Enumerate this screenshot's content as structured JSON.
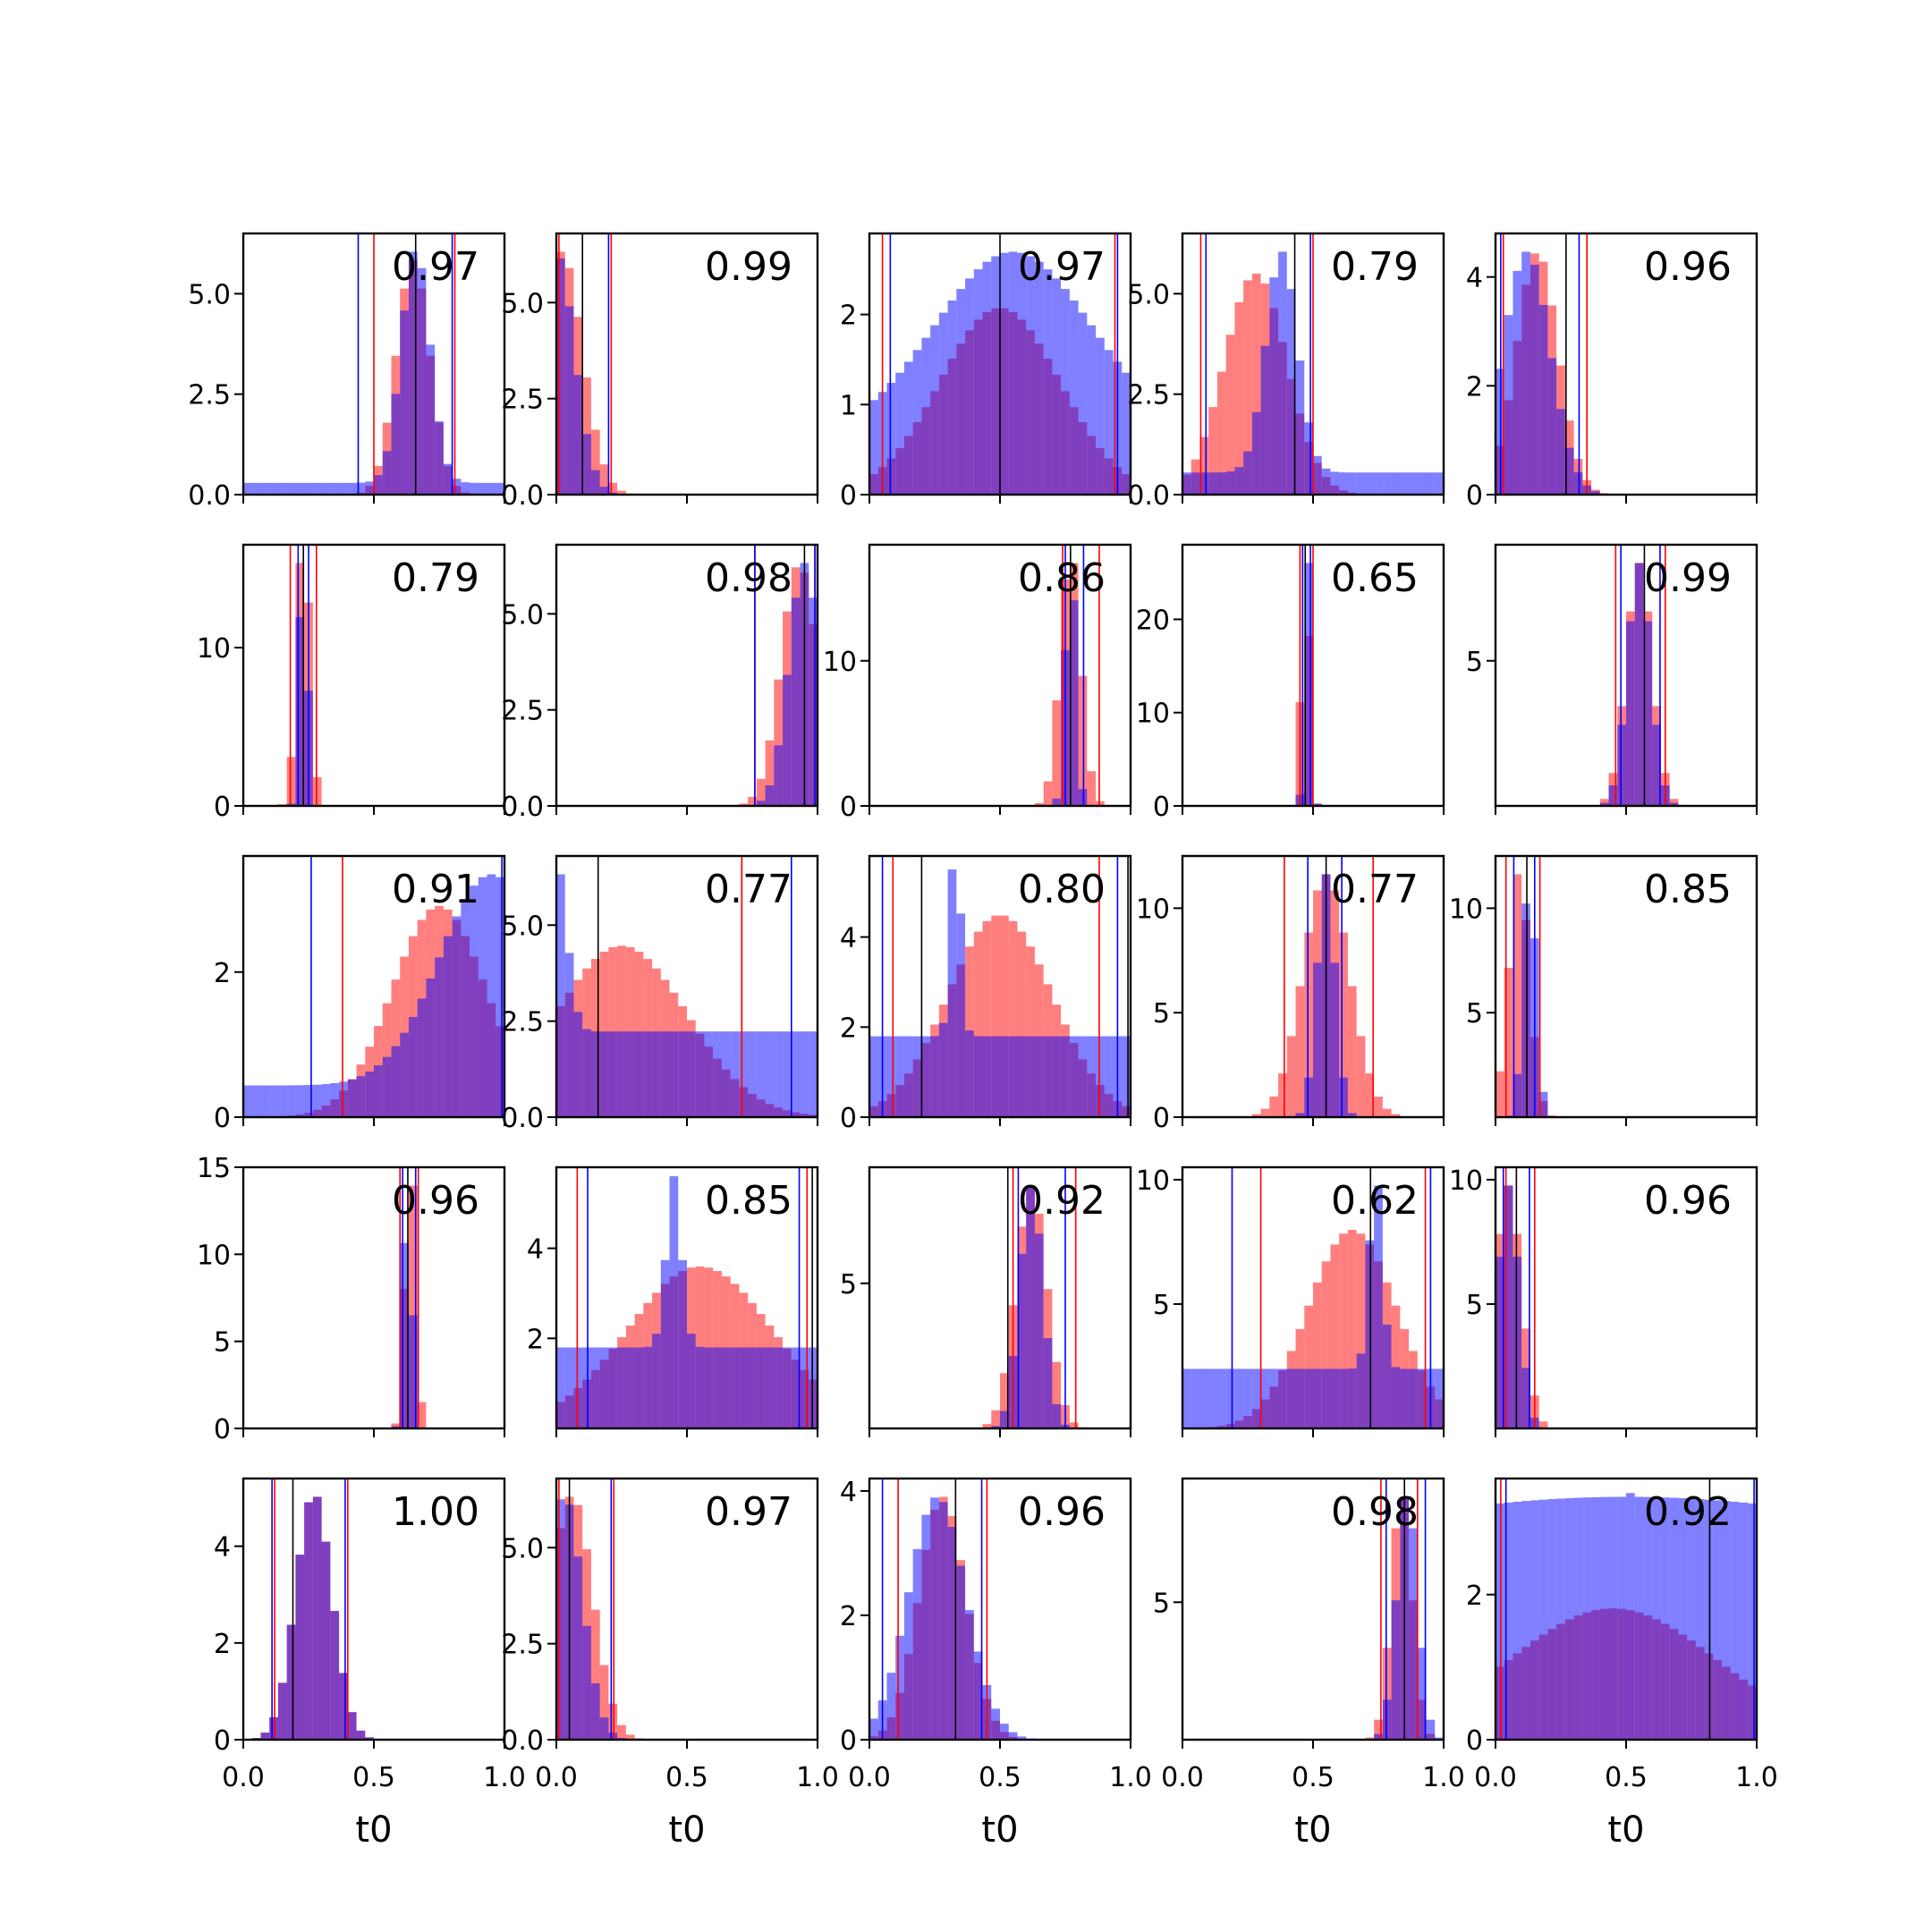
{
  "chart_data": {
    "type": "histogram-grid",
    "x_label": "t0",
    "xlim": [
      0,
      1
    ],
    "x_ticks": [
      "0.0",
      "0.5",
      "1.0"
    ],
    "colors": {
      "red": "#ff0000",
      "blue": "#0000ff",
      "black": "#000000",
      "overlap": "#7b3fbf"
    },
    "panels": [
      {
        "value": "0.97",
        "ymax": 6.5,
        "yticks": [
          "0.0",
          "2.5",
          "5.0"
        ],
        "redMu": 0.65,
        "redSd": 0.065,
        "blueMu": 0.66,
        "blueSd": 0.055,
        "blueSpike": null,
        "blueFloor": 0.05,
        "red_lines": [
          0.5,
          0.81
        ],
        "blue_lines": [
          0.44,
          0.8
        ],
        "black_lines": [
          0.66
        ]
      },
      {
        "value": "0.99",
        "ymax": 6.8,
        "yticks": [
          "0.0",
          "2.5",
          "5.0"
        ],
        "redMu": 0.02,
        "redSd": 0.08,
        "blueMu": 0.0,
        "blueSd": 0.07,
        "blueSpike": null,
        "blueFloor": 0,
        "red_lines": [
          0.01,
          0.21
        ],
        "blue_lines": [
          0.0,
          0.2
        ],
        "black_lines": [
          0.1
        ]
      },
      {
        "value": "0.97",
        "ymax": 2.9,
        "yticks": [
          "0",
          "1",
          "2"
        ],
        "redMu": 0.5,
        "redSd": 0.23,
        "blueMu": 0.55,
        "blueSd": 0.3,
        "blueSpike": null,
        "blueFloor": 0.3,
        "red_lines": [
          0.05,
          0.94
        ],
        "blue_lines": [
          0.08,
          0.95
        ],
        "black_lines": [
          0.5
        ]
      },
      {
        "value": "0.79",
        "ymax": 6.5,
        "yticks": [
          "0.0",
          "2.5",
          "5.0"
        ],
        "redMu": 0.28,
        "redSd": 0.12,
        "blueMu": 0.38,
        "blueSd": 0.06,
        "blueSpike": null,
        "blueFloor": 0.1,
        "red_lines": [
          0.07,
          0.5
        ],
        "blue_lines": [
          0.09,
          0.49
        ],
        "black_lines": [
          0.43
        ]
      },
      {
        "value": "0.96",
        "ymax": 4.8,
        "yticks": [
          "0",
          "2",
          "4"
        ],
        "redMu": 0.16,
        "redSd": 0.08,
        "blueMu": 0.12,
        "blueSd": 0.09,
        "blueSpike": null,
        "blueFloor": 0,
        "red_lines": [
          0.03,
          0.35
        ],
        "blue_lines": [
          0.02,
          0.32
        ],
        "black_lines": [
          0.27
        ]
      },
      {
        "value": "0.79",
        "ymax": 16.5,
        "yticks": [
          "0",
          "10"
        ],
        "redMu": 0.23,
        "redSd": 0.025,
        "blueMu": 0.23,
        "blueSd": 0.015,
        "blueSpike": null,
        "blueFloor": 0,
        "red_lines": [
          0.18,
          0.28
        ],
        "blue_lines": [
          0.21,
          0.25
        ],
        "black_lines": [
          0.23
        ]
      },
      {
        "value": "0.98",
        "ymax": 6.8,
        "yticks": [
          "0.0",
          "2.5",
          "5.0"
        ],
        "redMu": 0.93,
        "redSd": 0.07,
        "blueMu": 0.95,
        "blueSd": 0.06,
        "blueSpike": null,
        "blueFloor": 0,
        "red_lines": [
          0.76,
          0.99
        ],
        "blue_lines": [
          0.76,
          0.99
        ],
        "black_lines": [
          0.95
        ]
      },
      {
        "value": "0.86",
        "ymax": 18.0,
        "yticks": [
          "0",
          "10"
        ],
        "redMu": 0.77,
        "redSd": 0.04,
        "blueMu": 0.77,
        "blueSd": 0.02,
        "blueSpike": null,
        "blueFloor": 0,
        "red_lines": [
          0.74,
          0.88
        ],
        "blue_lines": [
          0.75,
          0.82
        ],
        "black_lines": [
          0.77
        ]
      },
      {
        "value": "0.65",
        "ymax": 28.0,
        "yticks": [
          "0",
          "10",
          "20"
        ],
        "redMu": 0.47,
        "redSd": 0.015,
        "blueMu": 0.48,
        "blueSd": 0.012,
        "blueSpike": null,
        "blueFloor": 0,
        "red_lines": [
          0.45,
          0.5
        ],
        "blue_lines": [
          0.46,
          0.49
        ],
        "black_lines": [
          0.47
        ]
      },
      {
        "value": "0.99",
        "ymax": 9.0,
        "yticks": [
          "5"
        ],
        "redMu": 0.55,
        "redSd": 0.05,
        "blueMu": 0.55,
        "blueSd": 0.045,
        "blueSpike": null,
        "blueFloor": 0,
        "red_lines": [
          0.46,
          0.65
        ],
        "blue_lines": [
          0.48,
          0.63
        ],
        "black_lines": [
          0.57
        ]
      },
      {
        "value": "0.91",
        "ymax": 3.6,
        "yticks": [
          "0",
          "2"
        ],
        "redMu": 0.75,
        "redSd": 0.18,
        "blueMu": 0.95,
        "blueSd": 0.2,
        "blueSpike": null,
        "blueFloor": 0.15,
        "red_lines": [
          0.38,
          1.0
        ],
        "blue_lines": [
          0.26,
          0.99
        ],
        "black_lines": []
      },
      {
        "value": "0.77",
        "ymax": 6.8,
        "yticks": [
          "0.0",
          "2.5",
          "5.0"
        ],
        "redMu": 0.25,
        "redSd": 0.25,
        "blueMu": 0.0,
        "blueSd": 0.04,
        "blueSpike": null,
        "blueFloor": 0.5,
        "red_lines": [
          0.71,
          0.71
        ],
        "blue_lines": [
          0.0,
          0.9
        ],
        "black_lines": [
          0.16
        ]
      },
      {
        "value": "0.80",
        "ymax": 5.8,
        "yticks": [
          "0",
          "2",
          "4"
        ],
        "redMu": 0.5,
        "redSd": 0.2,
        "blueMu": 0.33,
        "blueSd": 0.02,
        "blueSpike": 5.5,
        "blueFloor": 0.4,
        "red_lines": [
          0.09,
          0.88
        ],
        "blue_lines": [
          0.05,
          0.95
        ],
        "black_lines": [
          0.2,
          0.99
        ]
      },
      {
        "value": "0.77",
        "ymax": 12.5,
        "yticks": [
          "0",
          "5",
          "10"
        ],
        "redMu": 0.55,
        "redSd": 0.09,
        "blueMu": 0.55,
        "blueSd": 0.035,
        "blueSpike": null,
        "blueFloor": 0,
        "red_lines": [
          0.39,
          0.73
        ],
        "blue_lines": [
          0.48,
          0.61
        ],
        "black_lines": [
          0.55
        ]
      },
      {
        "value": "0.85",
        "ymax": 12.5,
        "yticks": [
          "5",
          "10"
        ],
        "redMu": 0.09,
        "redSd": 0.04,
        "blueMu": 0.13,
        "blueSd": 0.025,
        "blueSpike": null,
        "blueFloor": 0,
        "red_lines": [
          0.04,
          0.17
        ],
        "blue_lines": [
          0.07,
          0.15
        ],
        "black_lines": [
          0.12
        ]
      },
      {
        "value": "0.96",
        "ymax": 15.0,
        "yticks": [
          "0",
          "5",
          "10",
          "15"
        ],
        "redMu": 0.64,
        "redSd": 0.02,
        "blueMu": 0.63,
        "blueSd": 0.015,
        "blueSpike": null,
        "blueFloor": 0,
        "red_lines": [
          0.6,
          0.67
        ],
        "blue_lines": [
          0.61,
          0.66
        ],
        "black_lines": [
          0.63
        ]
      },
      {
        "value": "0.85",
        "ymax": 5.8,
        "yticks": [
          "2",
          "4"
        ],
        "redMu": 0.55,
        "redSd": 0.28,
        "blueMu": 0.45,
        "blueSd": 0.03,
        "blueSpike": 5.6,
        "blueFloor": 0.5,
        "red_lines": [
          0.08,
          0.96
        ],
        "blue_lines": [
          0.12,
          0.93
        ],
        "black_lines": [
          0.98
        ]
      },
      {
        "value": "0.92",
        "ymax": 9.0,
        "yticks": [
          "5"
        ],
        "redMu": 0.62,
        "redSd": 0.06,
        "blueMu": 0.62,
        "blueSd": 0.045,
        "blueSpike": null,
        "blueFloor": 0,
        "red_lines": [
          0.55,
          0.79
        ],
        "blue_lines": [
          0.57,
          0.75
        ],
        "black_lines": [
          0.53
        ]
      },
      {
        "value": "0.62",
        "ymax": 10.5,
        "yticks": [
          "5",
          "10"
        ],
        "redMu": 0.65,
        "redSd": 0.17,
        "blueMu": 0.74,
        "blueSd": 0.025,
        "blueSpike": null,
        "blueFloor": 0.3,
        "red_lines": [
          0.3,
          0.93
        ],
        "blue_lines": [
          0.19,
          0.95
        ],
        "black_lines": [
          0.72
        ]
      },
      {
        "value": "0.96",
        "ymax": 10.5,
        "yticks": [
          "5",
          "10"
        ],
        "redMu": 0.05,
        "redSd": 0.05,
        "blueMu": 0.05,
        "blueSd": 0.04,
        "blueSpike": null,
        "blueFloor": 0,
        "red_lines": [
          0.04,
          0.15
        ],
        "blue_lines": [
          0.03,
          0.13
        ],
        "black_lines": [
          0.08
        ]
      },
      {
        "value": "1.00",
        "ymax": 5.4,
        "yticks": [
          "0",
          "2",
          "4"
        ],
        "redMu": 0.27,
        "redSd": 0.07,
        "blueMu": 0.27,
        "blueSd": 0.07,
        "blueSpike": null,
        "blueFloor": 0,
        "red_lines": [
          0.12,
          0.4
        ],
        "blue_lines": [
          0.11,
          0.39
        ],
        "black_lines": [
          0.19
        ]
      },
      {
        "value": "0.97",
        "ymax": 6.8,
        "yticks": [
          "0.0",
          "2.5",
          "5.0"
        ],
        "redMu": 0.06,
        "redSd": 0.08,
        "blueMu": 0.03,
        "blueSd": 0.07,
        "blueSpike": null,
        "blueFloor": 0,
        "red_lines": [
          0.01,
          0.22
        ],
        "blue_lines": [
          0.0,
          0.21
        ],
        "black_lines": [
          0.05
        ]
      },
      {
        "value": "0.96",
        "ymax": 4.2,
        "yticks": [
          "0",
          "2",
          "4"
        ],
        "redMu": 0.28,
        "redSd": 0.09,
        "blueMu": 0.26,
        "blueSd": 0.11,
        "blueSpike": null,
        "blueFloor": 0,
        "red_lines": [
          0.11,
          0.45
        ],
        "blue_lines": [
          0.05,
          0.43
        ],
        "black_lines": [
          0.33
        ]
      },
      {
        "value": "0.98",
        "ymax": 9.5,
        "yticks": [
          "5"
        ],
        "redMu": 0.84,
        "redSd": 0.04,
        "blueMu": 0.86,
        "blueSd": 0.04,
        "blueSpike": null,
        "blueFloor": 0,
        "red_lines": [
          0.76,
          0.9
        ],
        "blue_lines": [
          0.78,
          0.93
        ],
        "black_lines": [
          0.85
        ]
      },
      {
        "value": "0.92",
        "ymax": 3.6,
        "yticks": [
          "0",
          "2"
        ],
        "redMu": 0.45,
        "redSd": 0.4,
        "blueMu": 0.5,
        "blueSd": 1.5,
        "blueSpike": 3.4,
        "blueFloor": 0.85,
        "red_lines": [
          0.02,
          1.0
        ],
        "blue_lines": [
          0.04,
          0.99
        ],
        "black_lines": [
          0.82
        ]
      }
    ]
  }
}
